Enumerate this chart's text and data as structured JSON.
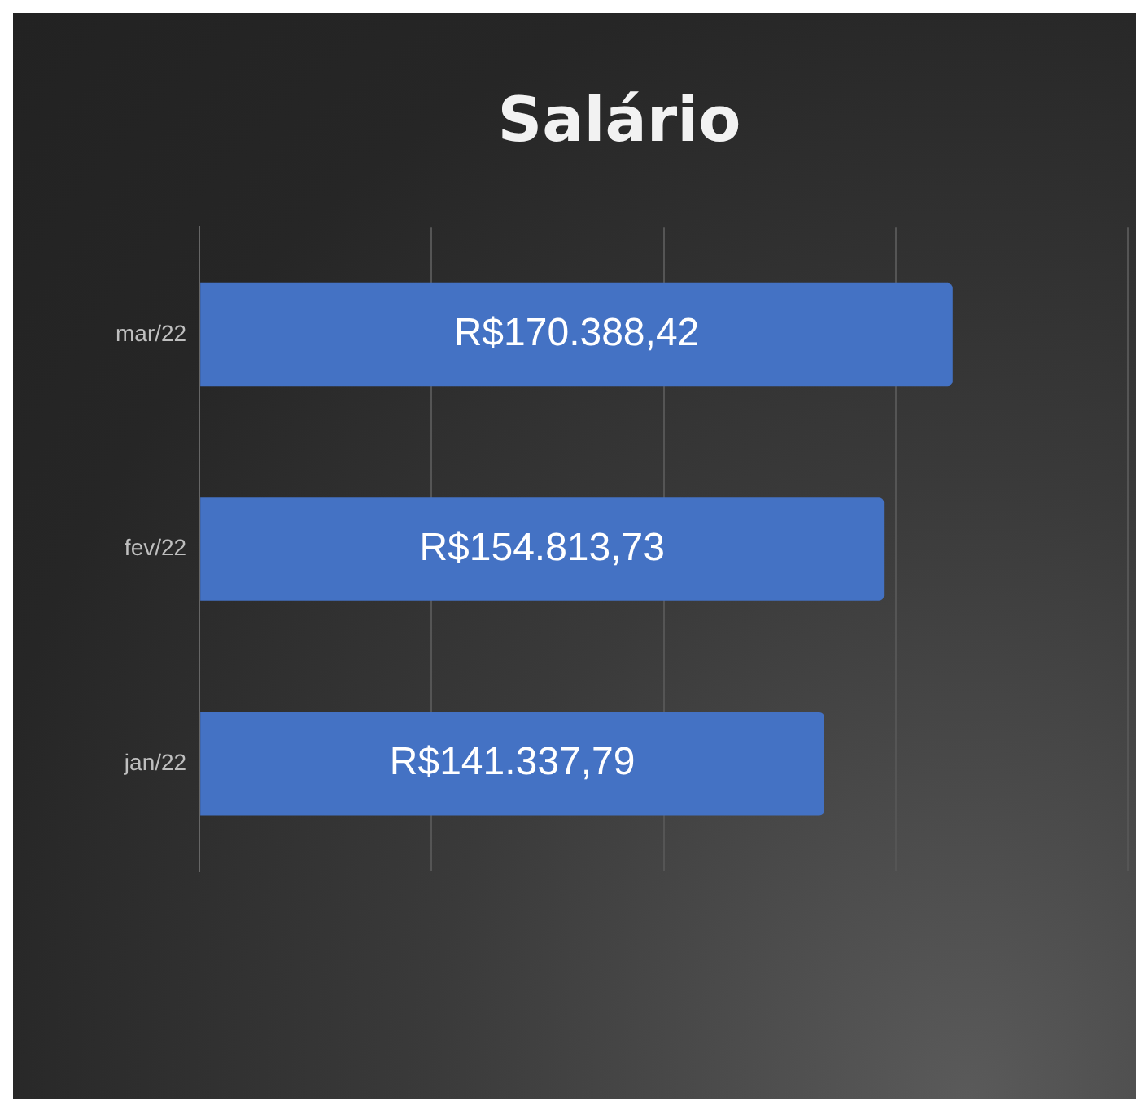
{
  "chart_data": {
    "type": "bar",
    "orientation": "horizontal",
    "title": "Salário",
    "categories": [
      "mar/22",
      "fev/22",
      "jan/22"
    ],
    "values": [
      170388.42,
      154813.73,
      141337.79
    ],
    "value_labels": [
      "R$170.388,42",
      "R$154.813,73",
      "R$141.337,79"
    ],
    "color": "#4472c4",
    "xlim": [
      0,
      210000
    ],
    "xticks": [
      {
        "value": 0,
        "label": null
      },
      {
        "value": 52500,
        "label": null
      },
      {
        "value": 105000,
        "label": null
      },
      {
        "value": 157500,
        "label": null
      },
      {
        "value": 210000,
        "label": null
      }
    ],
    "tick_labels": "y",
    "grid": "x",
    "legend": false
  }
}
